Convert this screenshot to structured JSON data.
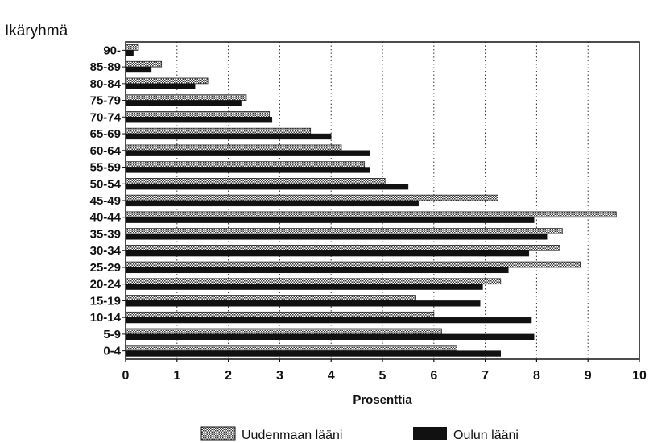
{
  "chart_data": {
    "type": "bar",
    "orientation": "horizontal",
    "title": "",
    "ylabel": "Ikäryhmä",
    "xlabel": "Prosenttia",
    "xlim": [
      0,
      10
    ],
    "xticks": [
      "0",
      "1",
      "2",
      "3",
      "4",
      "5",
      "6",
      "7",
      "8",
      "9",
      "10"
    ],
    "grid": "vertical dotted",
    "legend_position": "bottom",
    "categories": [
      "90-",
      "85-89",
      "80-84",
      "75-79",
      "70-74",
      "65-69",
      "60-64",
      "55-59",
      "50-54",
      "45-49",
      "40-44",
      "35-39",
      "30-34",
      "25-29",
      "20-24",
      "15-19",
      "10-14",
      "5-9",
      "0-4"
    ],
    "series": [
      {
        "name": "Uudenmaan lääni",
        "pattern": "hatched",
        "color": "#9a9a9a",
        "values": [
          0.25,
          0.7,
          1.6,
          2.35,
          2.8,
          3.6,
          4.2,
          4.65,
          5.05,
          7.25,
          9.55,
          8.5,
          8.45,
          8.85,
          7.3,
          5.65,
          6.0,
          6.15,
          6.45
        ]
      },
      {
        "name": "Oulun lääni",
        "pattern": "solid",
        "color": "#111111",
        "values": [
          0.15,
          0.5,
          1.35,
          2.25,
          2.85,
          4.0,
          4.75,
          4.75,
          5.5,
          5.7,
          7.95,
          8.2,
          7.85,
          7.45,
          6.95,
          6.9,
          7.9,
          7.95,
          7.3
        ]
      }
    ]
  }
}
